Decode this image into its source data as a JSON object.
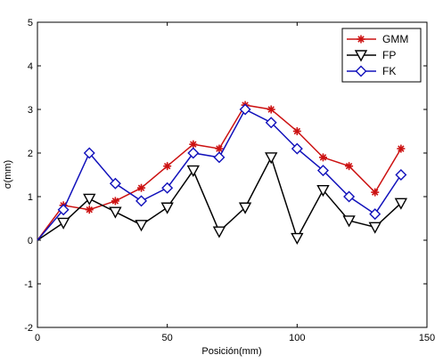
{
  "chart_data": {
    "type": "line",
    "xlabel": "Posición(mm)",
    "ylabel": "σ(mm)",
    "xlim": [
      0,
      150
    ],
    "ylim": [
      -2,
      5
    ],
    "xticks": [
      0,
      50,
      100,
      150
    ],
    "yticks": [
      -2,
      -1,
      0,
      1,
      2,
      3,
      4,
      5
    ],
    "grid": false,
    "legend_position": "top-right",
    "x": [
      0,
      10,
      20,
      30,
      40,
      50,
      60,
      70,
      80,
      90,
      100,
      110,
      120,
      130,
      140
    ],
    "series": [
      {
        "name": "GMM",
        "color": "#cc1111",
        "marker": "star",
        "values": [
          0,
          0.8,
          0.7,
          0.9,
          1.2,
          1.7,
          2.2,
          2.1,
          3.1,
          3.0,
          2.5,
          1.9,
          1.7,
          1.1,
          2.1
        ]
      },
      {
        "name": "FP",
        "color": "#000000",
        "marker": "triangle-down",
        "values": [
          0,
          0.4,
          0.95,
          0.65,
          0.35,
          0.75,
          1.6,
          0.2,
          0.75,
          1.9,
          0.05,
          1.15,
          0.45,
          0.3,
          0.85
        ]
      },
      {
        "name": "FK",
        "color": "#1111bb",
        "marker": "diamond",
        "values": [
          0,
          0.7,
          2.0,
          1.3,
          0.9,
          1.2,
          2.0,
          1.9,
          3.0,
          2.7,
          2.1,
          1.6,
          1.0,
          0.6,
          1.5
        ]
      }
    ]
  }
}
